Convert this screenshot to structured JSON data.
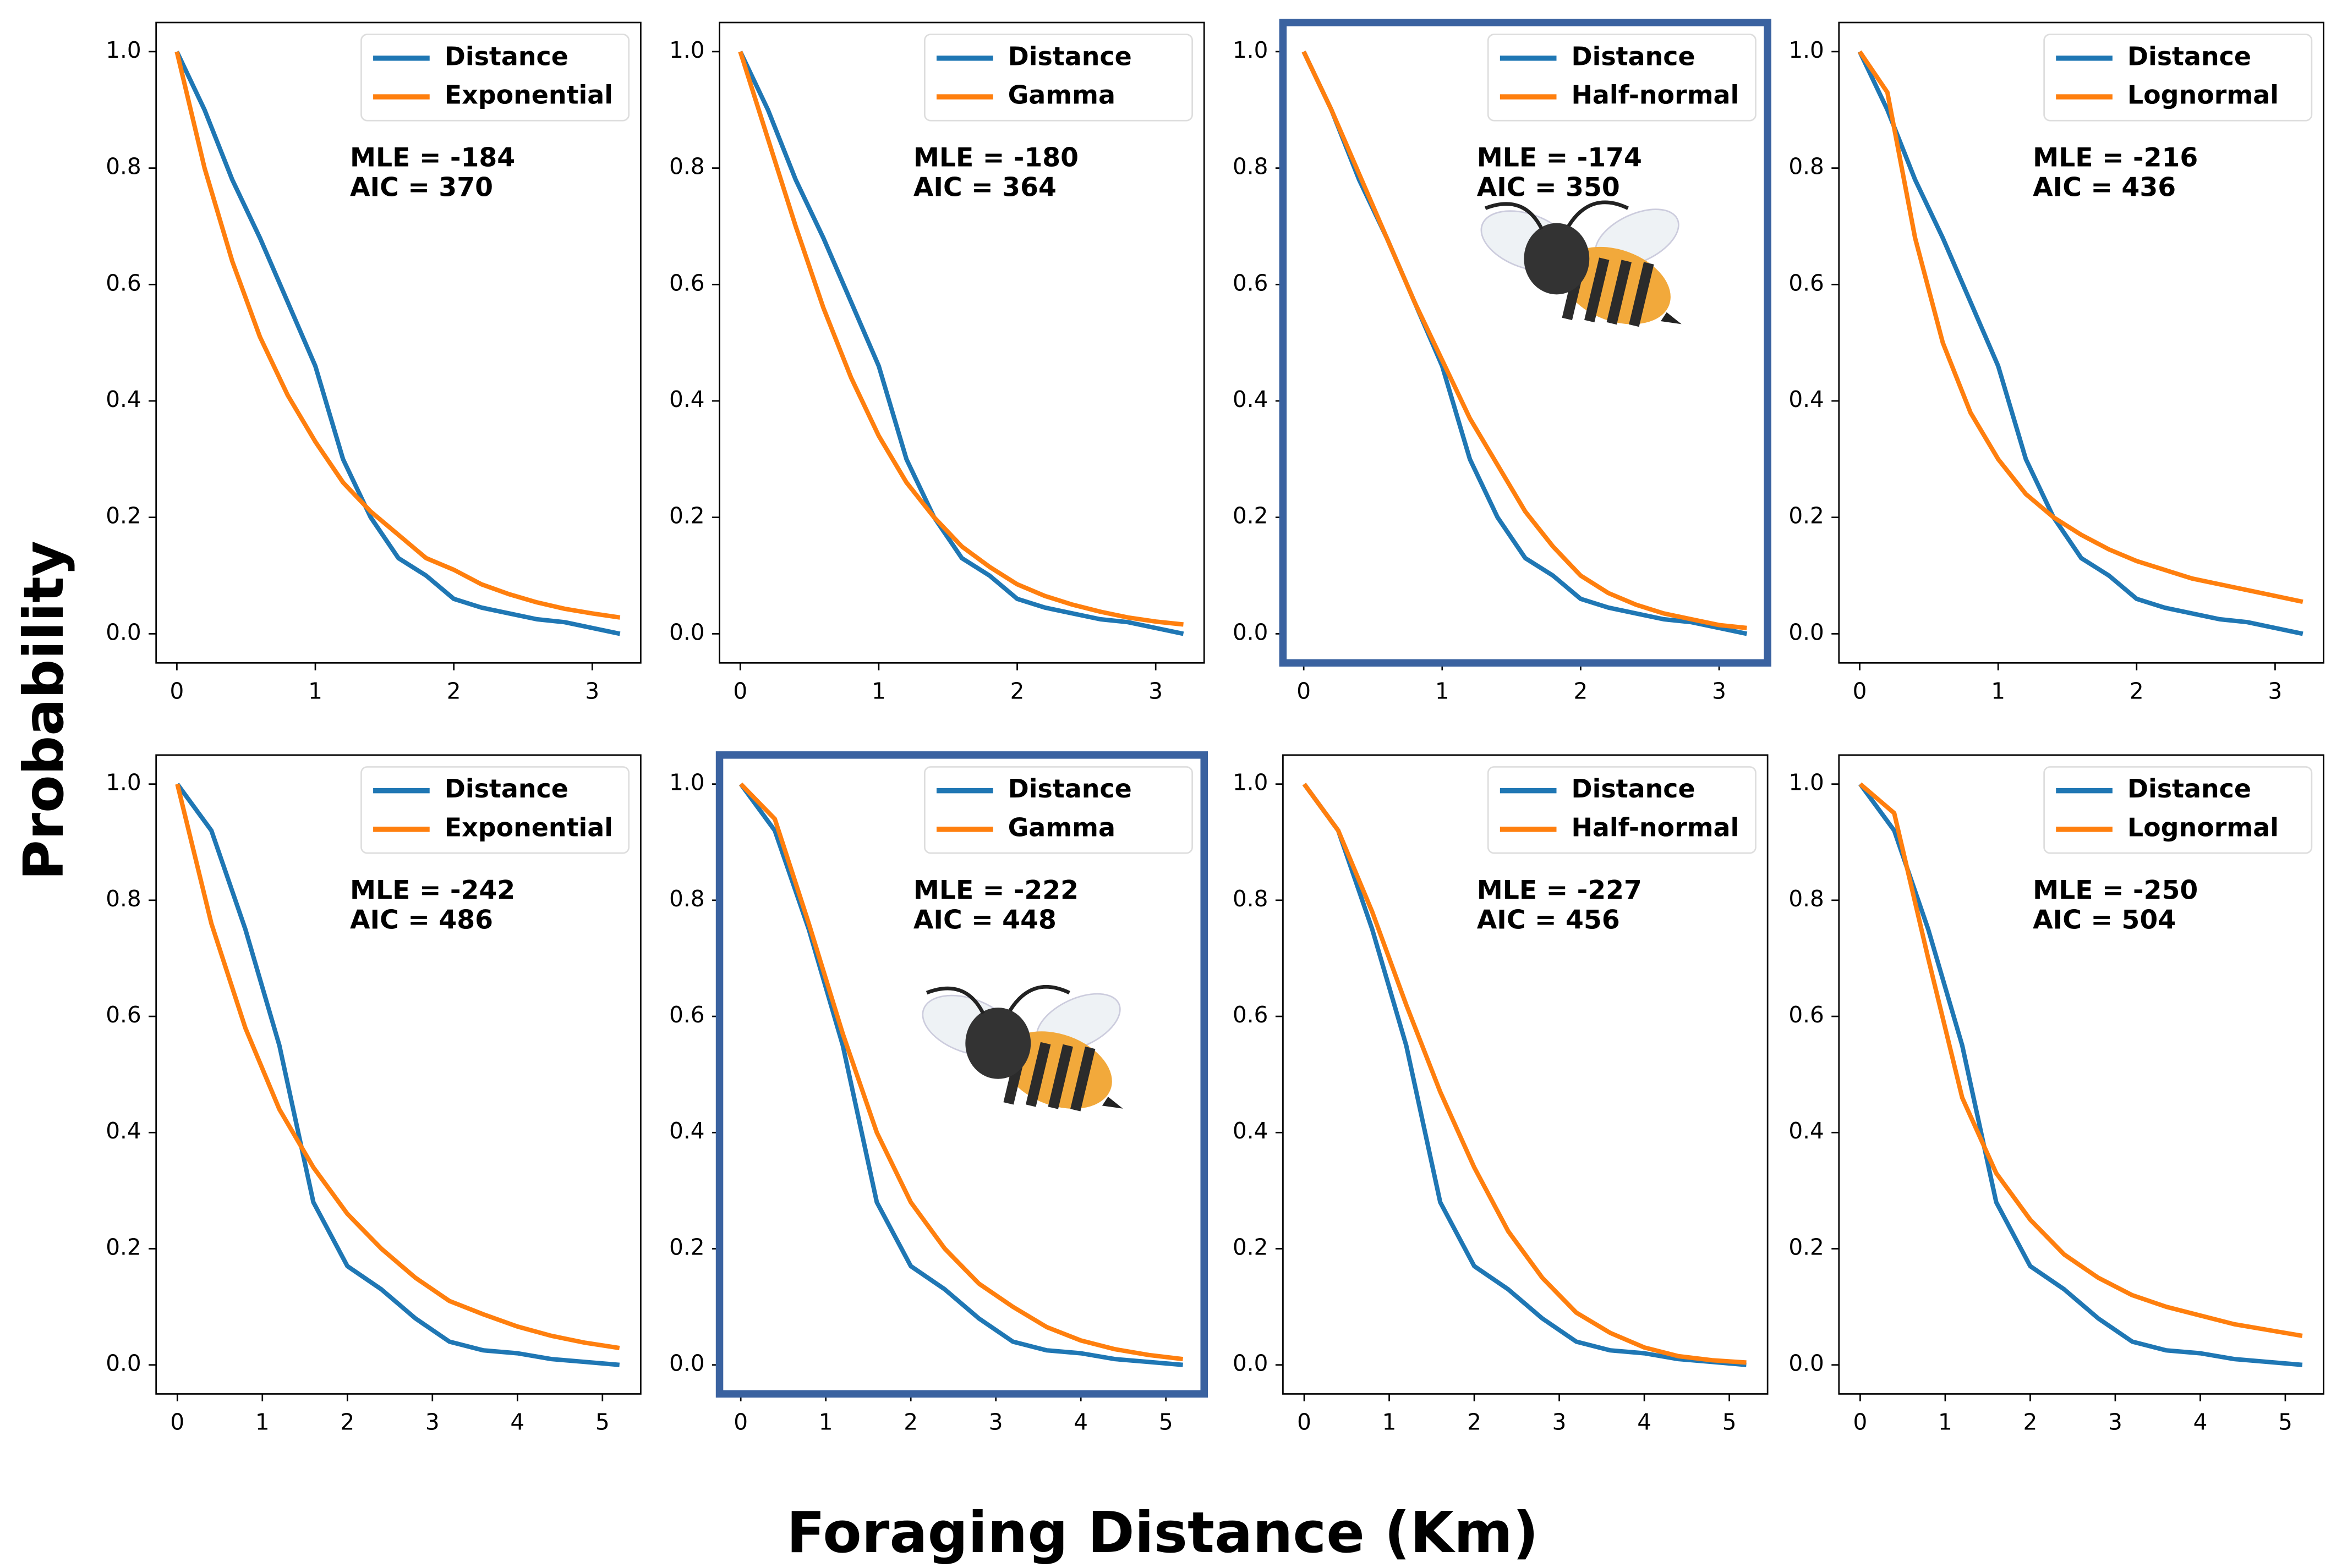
{
  "ylabel": "Probability",
  "xlabel": "Foraging Distance (Km)",
  "chart_data": [
    {
      "type": "line",
      "x": [
        0,
        0.2,
        0.4,
        0.6,
        0.8,
        1.0,
        1.2,
        1.4,
        1.6,
        1.8,
        2.0,
        2.2,
        2.4,
        2.6,
        2.8,
        3.0,
        3.2
      ],
      "series": [
        {
          "name": "Distance",
          "color": "#1f77b4",
          "values": [
            1.0,
            0.9,
            0.78,
            0.68,
            0.57,
            0.46,
            0.3,
            0.2,
            0.13,
            0.1,
            0.06,
            0.045,
            0.035,
            0.025,
            0.02,
            0.01,
            0.0
          ]
        },
        {
          "name": "Exponential",
          "color": "#ff7f0e",
          "values": [
            1.0,
            0.8,
            0.64,
            0.51,
            0.41,
            0.33,
            0.26,
            0.21,
            0.17,
            0.13,
            0.11,
            0.085,
            0.068,
            0.054,
            0.043,
            0.035,
            0.028
          ]
        }
      ],
      "annotations": [
        "MLE = -184",
        "AIC = 370"
      ],
      "xlim": [
        -0.15,
        3.35
      ],
      "ylim": [
        -0.05,
        1.05
      ],
      "xticks": [
        0,
        1,
        2,
        3
      ],
      "yticks": [
        {
          "value": 0,
          "label": "0.0"
        },
        0.2,
        0.4,
        0.6,
        0.8,
        {
          "value": 1,
          "label": "1.0"
        }
      ],
      "legend": "upper right",
      "highlighted": false
    },
    {
      "type": "line",
      "x": [
        0,
        0.2,
        0.4,
        0.6,
        0.8,
        1.0,
        1.2,
        1.4,
        1.6,
        1.8,
        2.0,
        2.2,
        2.4,
        2.6,
        2.8,
        3.0,
        3.2
      ],
      "series": [
        {
          "name": "Distance",
          "color": "#1f77b4",
          "values": [
            1.0,
            0.9,
            0.78,
            0.68,
            0.57,
            0.46,
            0.3,
            0.2,
            0.13,
            0.1,
            0.06,
            0.045,
            0.035,
            0.025,
            0.02,
            0.01,
            0.0
          ]
        },
        {
          "name": "Gamma",
          "color": "#ff7f0e",
          "values": [
            1.0,
            0.85,
            0.7,
            0.56,
            0.44,
            0.34,
            0.26,
            0.2,
            0.15,
            0.115,
            0.085,
            0.065,
            0.05,
            0.038,
            0.028,
            0.021,
            0.016
          ]
        }
      ],
      "annotations": [
        "MLE = -180",
        "AIC = 364"
      ],
      "xlim": [
        -0.15,
        3.35
      ],
      "ylim": [
        -0.05,
        1.05
      ],
      "xticks": [
        0,
        1,
        2,
        3
      ],
      "yticks": [
        {
          "value": 0,
          "label": "0.0"
        },
        0.2,
        0.4,
        0.6,
        0.8,
        {
          "value": 1,
          "label": "1.0"
        }
      ],
      "legend": "upper right",
      "highlighted": false
    },
    {
      "type": "line",
      "x": [
        0,
        0.2,
        0.4,
        0.6,
        0.8,
        1.0,
        1.2,
        1.4,
        1.6,
        1.8,
        2.0,
        2.2,
        2.4,
        2.6,
        2.8,
        3.0,
        3.2
      ],
      "series": [
        {
          "name": "Distance",
          "color": "#1f77b4",
          "values": [
            1.0,
            0.9,
            0.78,
            0.68,
            0.57,
            0.46,
            0.3,
            0.2,
            0.13,
            0.1,
            0.06,
            0.045,
            0.035,
            0.025,
            0.02,
            0.01,
            0.0
          ]
        },
        {
          "name": "Half-normal",
          "color": "#ff7f0e",
          "values": [
            1.0,
            0.9,
            0.79,
            0.68,
            0.57,
            0.47,
            0.37,
            0.29,
            0.21,
            0.15,
            0.1,
            0.07,
            0.05,
            0.035,
            0.025,
            0.015,
            0.01
          ]
        }
      ],
      "annotations": [
        "MLE = -174",
        "AIC = 350"
      ],
      "xlim": [
        -0.15,
        3.35
      ],
      "ylim": [
        -0.05,
        1.05
      ],
      "xticks": [
        0,
        1,
        2,
        3
      ],
      "yticks": [
        {
          "value": 0,
          "label": "0.0"
        },
        0.2,
        0.4,
        0.6,
        0.8,
        {
          "value": 1,
          "label": "1.0"
        }
      ],
      "legend": "upper right",
      "highlighted": true
    },
    {
      "type": "line",
      "x": [
        0,
        0.2,
        0.4,
        0.6,
        0.8,
        1.0,
        1.2,
        1.4,
        1.6,
        1.8,
        2.0,
        2.2,
        2.4,
        2.6,
        2.8,
        3.0,
        3.2
      ],
      "series": [
        {
          "name": "Distance",
          "color": "#1f77b4",
          "values": [
            1.0,
            0.9,
            0.78,
            0.68,
            0.57,
            0.46,
            0.3,
            0.2,
            0.13,
            0.1,
            0.06,
            0.045,
            0.035,
            0.025,
            0.02,
            0.01,
            0.0
          ]
        },
        {
          "name": "Lognormal",
          "color": "#ff7f0e",
          "values": [
            1.0,
            0.93,
            0.68,
            0.5,
            0.38,
            0.3,
            0.24,
            0.2,
            0.17,
            0.145,
            0.125,
            0.11,
            0.095,
            0.085,
            0.075,
            0.065,
            0.055
          ]
        }
      ],
      "annotations": [
        "MLE = -216",
        "AIC = 436"
      ],
      "xlim": [
        -0.15,
        3.35
      ],
      "ylim": [
        -0.05,
        1.05
      ],
      "xticks": [
        0,
        1,
        2,
        3
      ],
      "yticks": [
        {
          "value": 0,
          "label": "0.0"
        },
        0.2,
        0.4,
        0.6,
        0.8,
        {
          "value": 1,
          "label": "1.0"
        }
      ],
      "legend": "upper right",
      "highlighted": false
    },
    {
      "type": "line",
      "x": [
        0,
        0.4,
        0.8,
        1.2,
        1.6,
        2.0,
        2.4,
        2.8,
        3.2,
        3.6,
        4.0,
        4.4,
        4.8,
        5.2
      ],
      "series": [
        {
          "name": "Distance",
          "color": "#1f77b4",
          "values": [
            1.0,
            0.92,
            0.75,
            0.55,
            0.28,
            0.17,
            0.13,
            0.08,
            0.04,
            0.025,
            0.02,
            0.01,
            0.005,
            0.0
          ]
        },
        {
          "name": "Exponential",
          "color": "#ff7f0e",
          "values": [
            1.0,
            0.76,
            0.58,
            0.44,
            0.34,
            0.26,
            0.2,
            0.15,
            0.11,
            0.087,
            0.066,
            0.05,
            0.038,
            0.029
          ]
        }
      ],
      "annotations": [
        "MLE = -242",
        "AIC = 486"
      ],
      "xlim": [
        -0.25,
        5.45
      ],
      "ylim": [
        -0.05,
        1.05
      ],
      "xticks": [
        0,
        1,
        2,
        3,
        4,
        5
      ],
      "yticks": [
        {
          "value": 0,
          "label": "0.0"
        },
        0.2,
        0.4,
        0.6,
        0.8,
        {
          "value": 1,
          "label": "1.0"
        }
      ],
      "legend": "upper right",
      "highlighted": false
    },
    {
      "type": "line",
      "x": [
        0,
        0.4,
        0.8,
        1.2,
        1.6,
        2.0,
        2.4,
        2.8,
        3.2,
        3.6,
        4.0,
        4.4,
        4.8,
        5.2
      ],
      "series": [
        {
          "name": "Distance",
          "color": "#1f77b4",
          "values": [
            1.0,
            0.92,
            0.75,
            0.55,
            0.28,
            0.17,
            0.13,
            0.08,
            0.04,
            0.025,
            0.02,
            0.01,
            0.005,
            0.0
          ]
        },
        {
          "name": "Gamma",
          "color": "#ff7f0e",
          "values": [
            1.0,
            0.94,
            0.76,
            0.57,
            0.4,
            0.28,
            0.2,
            0.14,
            0.1,
            0.065,
            0.042,
            0.027,
            0.017,
            0.01
          ]
        }
      ],
      "annotations": [
        "MLE = -222",
        "AIC = 448"
      ],
      "xlim": [
        -0.25,
        5.45
      ],
      "ylim": [
        -0.05,
        1.05
      ],
      "xticks": [
        0,
        1,
        2,
        3,
        4,
        5
      ],
      "yticks": [
        {
          "value": 0,
          "label": "0.0"
        },
        0.2,
        0.4,
        0.6,
        0.8,
        {
          "value": 1,
          "label": "1.0"
        }
      ],
      "legend": "upper right",
      "highlighted": true
    },
    {
      "type": "line",
      "x": [
        0,
        0.4,
        0.8,
        1.2,
        1.6,
        2.0,
        2.4,
        2.8,
        3.2,
        3.6,
        4.0,
        4.4,
        4.8,
        5.2
      ],
      "series": [
        {
          "name": "Distance",
          "color": "#1f77b4",
          "values": [
            1.0,
            0.92,
            0.75,
            0.55,
            0.28,
            0.17,
            0.13,
            0.08,
            0.04,
            0.025,
            0.02,
            0.01,
            0.005,
            0.0
          ]
        },
        {
          "name": "Half-normal",
          "color": "#ff7f0e",
          "values": [
            1.0,
            0.92,
            0.78,
            0.62,
            0.47,
            0.34,
            0.23,
            0.15,
            0.09,
            0.055,
            0.03,
            0.015,
            0.008,
            0.004
          ]
        }
      ],
      "annotations": [
        "MLE = -227",
        "AIC = 456"
      ],
      "xlim": [
        -0.25,
        5.45
      ],
      "ylim": [
        -0.05,
        1.05
      ],
      "xticks": [
        0,
        1,
        2,
        3,
        4,
        5
      ],
      "yticks": [
        {
          "value": 0,
          "label": "0.0"
        },
        0.2,
        0.4,
        0.6,
        0.8,
        {
          "value": 1,
          "label": "1.0"
        }
      ],
      "legend": "upper right",
      "highlighted": false
    },
    {
      "type": "line",
      "x": [
        0,
        0.4,
        0.8,
        1.2,
        1.6,
        2.0,
        2.4,
        2.8,
        3.2,
        3.6,
        4.0,
        4.4,
        4.8,
        5.2
      ],
      "series": [
        {
          "name": "Distance",
          "color": "#1f77b4",
          "values": [
            1.0,
            0.92,
            0.75,
            0.55,
            0.28,
            0.17,
            0.13,
            0.08,
            0.04,
            0.025,
            0.02,
            0.01,
            0.005,
            0.0
          ]
        },
        {
          "name": "Lognormal",
          "color": "#ff7f0e",
          "values": [
            1.0,
            0.95,
            0.7,
            0.46,
            0.33,
            0.25,
            0.19,
            0.15,
            0.12,
            0.1,
            0.085,
            0.07,
            0.06,
            0.05
          ]
        }
      ],
      "annotations": [
        "MLE = -250",
        "AIC = 504"
      ],
      "xlim": [
        -0.25,
        5.45
      ],
      "ylim": [
        -0.05,
        1.05
      ],
      "xticks": [
        0,
        1,
        2,
        3,
        4,
        5
      ],
      "yticks": [
        {
          "value": 0,
          "label": "0.0"
        },
        0.2,
        0.4,
        0.6,
        0.8,
        {
          "value": 1,
          "label": "1.0"
        }
      ],
      "legend": "upper right",
      "highlighted": false
    }
  ]
}
